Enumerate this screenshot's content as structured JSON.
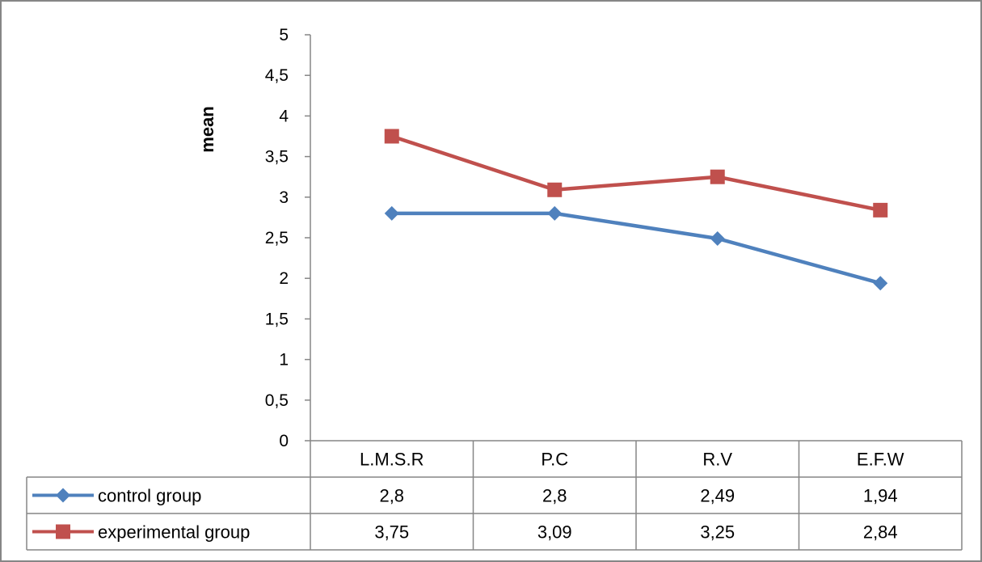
{
  "chart_data": {
    "type": "line",
    "ylabel": "mean",
    "xlabel": "",
    "title": "",
    "ylim": [
      0,
      5
    ],
    "yticks": [
      "0",
      "0,5",
      "1",
      "1,5",
      "2",
      "2,5",
      "3",
      "3,5",
      "4",
      "4,5",
      "5"
    ],
    "categories": [
      "L.M.S.R",
      "P.C",
      "R.V",
      "E.F.W"
    ],
    "grid": false,
    "legend": "data-table",
    "series": [
      {
        "name": "control group",
        "values": [
          2.8,
          2.8,
          2.49,
          1.94
        ],
        "labels": [
          "2,8",
          "2,8",
          "2,49",
          "1,94"
        ],
        "color": "#4f81bd",
        "marker": "diamond"
      },
      {
        "name": "experimental group",
        "values": [
          3.75,
          3.09,
          3.25,
          2.84
        ],
        "labels": [
          "3,75",
          "3,09",
          "3,25",
          "2,84"
        ],
        "color": "#c0504d",
        "marker": "square"
      }
    ]
  }
}
